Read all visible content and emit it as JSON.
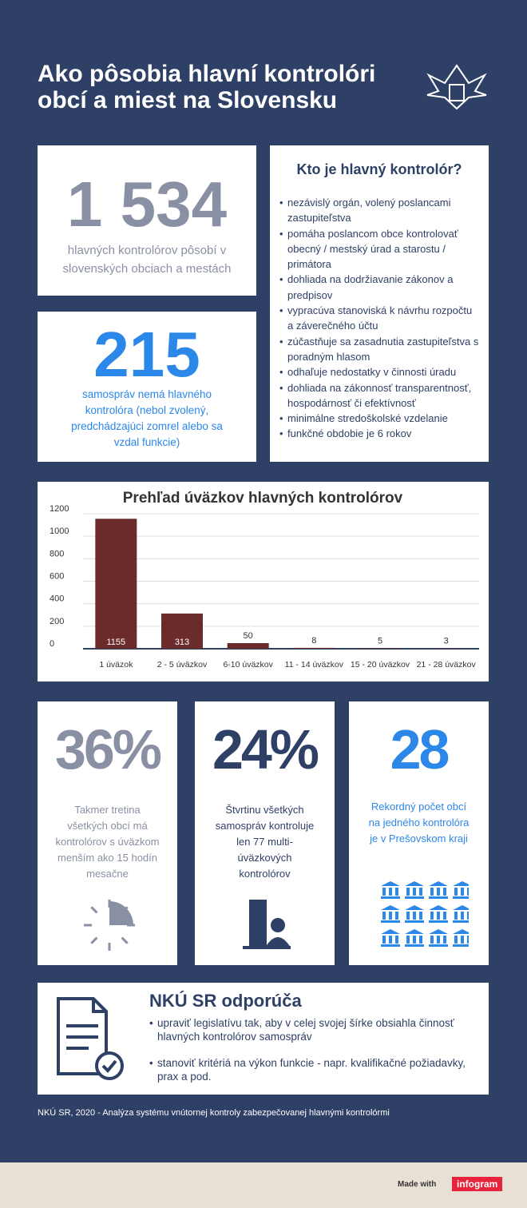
{
  "header": {
    "title": "Ako pôsobia hlavní kontrolóri obcí a miest na Slovensku"
  },
  "stat1": {
    "number": "1 534",
    "text": "hlavných kontrolórov pôsobí v slovenských obciach a mestách"
  },
  "stat2": {
    "number": "215",
    "text": "samospráv nemá hlavného kontrolóra (nebol zvolený, predchádzajúci zomrel alebo sa vzdal funkcie)"
  },
  "who": {
    "heading": "Kto je hlavný kontrolór?",
    "items": [
      "nezávislý orgán, volený poslancami zastupiteľstva",
      "pomáha poslancom obce kontrolovať obecný / mestský úrad a starostu / primátora",
      "dohliada na dodržiavanie zákonov a predpisov",
      "vypracúva stanoviská k návrhu rozpočtu a záverečného účtu",
      "zúčastňuje sa zasadnutia zastupiteľstva s poradným hlasom",
      "odhaľuje nedostatky v činnosti úradu",
      "dohliada na zákonnosť transparentnosť, hospodárnosť či efektívnosť",
      "minimálne stredoškolské vzdelanie",
      "funkčné obdobie je 6 rokov"
    ]
  },
  "chart_data": {
    "type": "bar",
    "title": "Prehľad úväzkov hlavných kontrolórov",
    "categories": [
      "1 úväzok",
      "2 - 5 úväzkov",
      "6-10 úväzkov",
      "11 - 14 úväzkov",
      "15 - 20 úväzkov",
      "21 - 28 úväzkov"
    ],
    "values": [
      1155,
      313,
      50,
      8,
      5,
      3
    ],
    "color": "#6b2b2b",
    "ylim": [
      0,
      1200
    ],
    "yticks": [
      0,
      200,
      400,
      600,
      800,
      1000,
      1200
    ],
    "grid": true
  },
  "facts": [
    {
      "number": "36%",
      "text": "Takmer tretina všetkých obcí má kontrolórov s úväzkom menším ako 15 hodín mesačne"
    },
    {
      "number": "24%",
      "text": "Štvrtinu všetkých samospráv kontroluje len 77 multi-úväzkových kontrolórov"
    },
    {
      "number": "28",
      "text": "Rekordný počet obcí na jedného kontrolóra je v Prešovskom kraji"
    }
  ],
  "recommend": {
    "heading": "NKÚ SR odporúča",
    "items": [
      "upraviť legislatívu tak, aby v celej svojej šírke obsiahla činnosť hlavných kontrolórov samospráv",
      "stanoviť kritériá na výkon funkcie - napr. kvalifikačné požiadavky, prax a pod."
    ]
  },
  "footer": {
    "source": "NKÚ SR, 2020  -  Analýza systému vnútornej kontroly zabezpečovanej hlavnými kontrolórmi",
    "made_with": "Made with",
    "brand": "infogram"
  }
}
